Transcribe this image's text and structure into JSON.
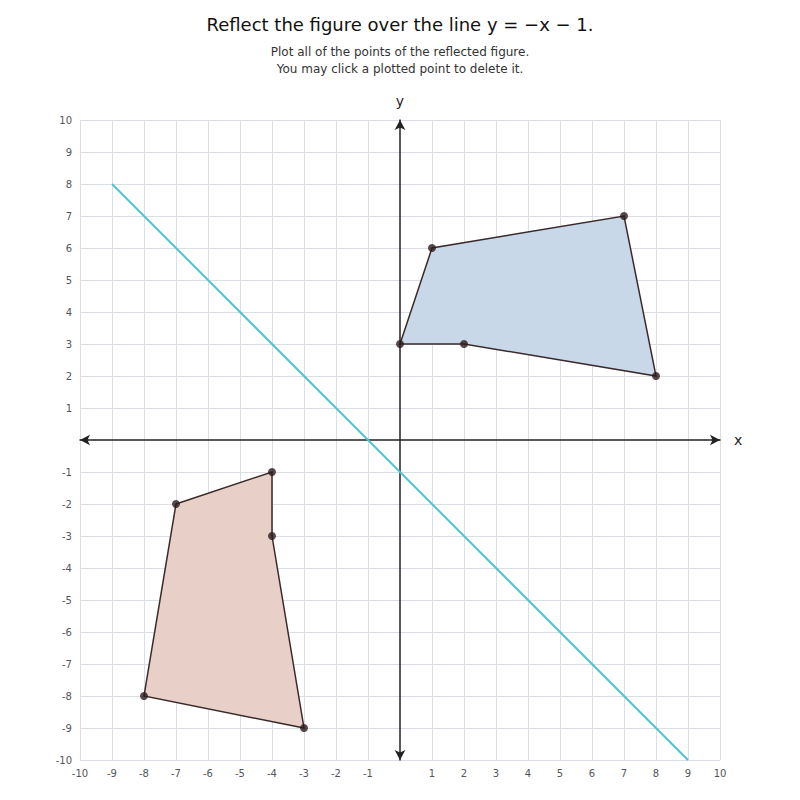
{
  "chart_data": {
    "type": "polygon",
    "title": "Reflect the figure over the line y = −x − 1.",
    "subtitle": "Plot all of the points of the reflected figure.\nYou may click a plotted point to delete it.",
    "xlabel": "x",
    "ylabel": "y",
    "xlim": [
      -10,
      10
    ],
    "ylim": [
      -10,
      10
    ],
    "xticks": [
      -10,
      -9,
      -8,
      -7,
      -6,
      -5,
      -4,
      -3,
      -2,
      -1,
      1,
      2,
      3,
      4,
      5,
      6,
      7,
      8,
      9,
      10
    ],
    "yticks": [
      -10,
      -9,
      -8,
      -7,
      -6,
      -5,
      -4,
      -3,
      -2,
      -1,
      1,
      2,
      3,
      4,
      5,
      6,
      7,
      8,
      9,
      10
    ],
    "grid": true,
    "series": [
      {
        "type": "line",
        "color": "#4fc3d0",
        "marker": "arrow",
        "line_style": "solid",
        "x": [
          -9,
          9
        ],
        "values": [
          8,
          -10
        ]
      },
      {
        "type": "polygon",
        "color": "#e8d0c8",
        "marker": "circle",
        "x": [
          -7,
          -4,
          -4,
          -3,
          -8
        ],
        "values": [
          -2,
          -1,
          -3,
          -9,
          -8
        ]
      },
      {
        "type": "polygon",
        "color": "#c8d8e8",
        "marker": "circle",
        "x": [
          1,
          0,
          2,
          8,
          7
        ],
        "values": [
          6,
          3,
          3,
          2,
          7
        ]
      }
    ]
  }
}
